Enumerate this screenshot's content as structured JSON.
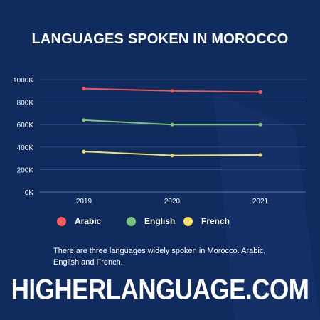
{
  "title": "LANGUAGES SPOKEN IN MOROCCO",
  "description": "There are three languages widely spoken in Morocco. Arabic, English and French.",
  "brand": "HIGHERLANGUAGE.COM",
  "colors": {
    "background": "#102b5e",
    "arabic": "#e85a5a",
    "english": "#7cc576",
    "french": "#f3e06b"
  },
  "legend": [
    {
      "label": "Arabic",
      "color": "#ff5b5b"
    },
    {
      "label": "English",
      "color": "#7cc576"
    },
    {
      "label": "French",
      "color": "#ffe066"
    }
  ],
  "chart_data": {
    "type": "line",
    "title": "LANGUAGES SPOKEN IN MOROCCO",
    "xlabel": "",
    "ylabel": "",
    "x": [
      "2019",
      "2020",
      "2021"
    ],
    "yticks": [
      "0K",
      "200K",
      "400K",
      "600K",
      "800K",
      "1000K"
    ],
    "ylim": [
      0,
      1000000
    ],
    "grid": true,
    "legend_position": "bottom",
    "series": [
      {
        "name": "Arabic",
        "color": "#e85a5a",
        "values": [
          920000,
          900000,
          890000
        ]
      },
      {
        "name": "English",
        "color": "#7cc576",
        "values": [
          640000,
          600000,
          600000
        ]
      },
      {
        "name": "French",
        "color": "#f3e06b",
        "values": [
          360000,
          325000,
          330000
        ]
      }
    ]
  }
}
